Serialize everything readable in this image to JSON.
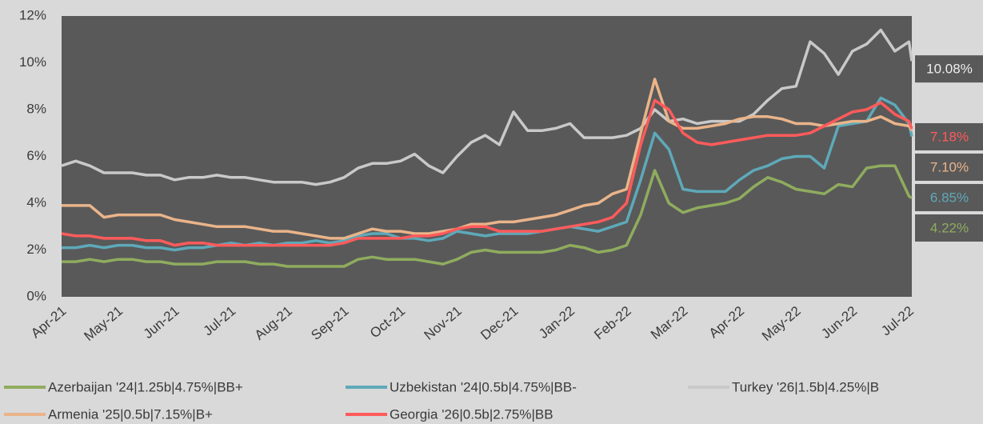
{
  "chart_data": {
    "type": "line",
    "x": [
      0,
      0.25,
      0.5,
      0.75,
      1,
      1.25,
      1.5,
      1.75,
      2,
      2.25,
      2.5,
      2.75,
      3,
      3.25,
      3.5,
      3.75,
      4,
      4.25,
      4.5,
      4.75,
      5,
      5.25,
      5.5,
      5.75,
      6,
      6.25,
      6.5,
      6.75,
      7,
      7.25,
      7.5,
      7.75,
      8,
      8.25,
      8.5,
      8.75,
      9,
      9.25,
      9.5,
      9.75,
      10,
      10.25,
      10.5,
      10.75,
      11,
      11.25,
      11.5,
      11.75,
      12,
      12.25,
      12.5,
      12.75,
      13,
      13.25,
      13.5,
      13.75,
      14,
      14.25,
      14.5,
      14.75,
      15,
      15.05
    ],
    "xlim": [
      0,
      15.05
    ],
    "xticks": [
      {
        "value": 0,
        "label": "Apr-21"
      },
      {
        "value": 1,
        "label": "May-21"
      },
      {
        "value": 2,
        "label": "Jun-21"
      },
      {
        "value": 3,
        "label": "Jul-21"
      },
      {
        "value": 4,
        "label": "Aug-21"
      },
      {
        "value": 5,
        "label": "Sep-21"
      },
      {
        "value": 6,
        "label": "Oct-21"
      },
      {
        "value": 7,
        "label": "Nov-21"
      },
      {
        "value": 8,
        "label": "Dec-21"
      },
      {
        "value": 9,
        "label": "Jan-22"
      },
      {
        "value": 10,
        "label": "Feb-22"
      },
      {
        "value": 11,
        "label": "Mar-22"
      },
      {
        "value": 12,
        "label": "Apr-22"
      },
      {
        "value": 13,
        "label": "May-22"
      },
      {
        "value": 14,
        "label": "Jun-22"
      },
      {
        "value": 15,
        "label": "Jul-22"
      }
    ],
    "ylim": [
      0,
      12
    ],
    "yticks": [
      {
        "value": 0,
        "label": "0%"
      },
      {
        "value": 2,
        "label": "2%"
      },
      {
        "value": 4,
        "label": "4%"
      },
      {
        "value": 6,
        "label": "6%"
      },
      {
        "value": 8,
        "label": "8%"
      },
      {
        "value": 10,
        "label": "10%"
      },
      {
        "value": 12,
        "label": "12%"
      }
    ],
    "grid": false,
    "legend": "bottom",
    "series": [
      {
        "name": "Azerbaijan '24|1.25b|4.75%|BB+",
        "color": "#8fac5e",
        "end_label": "4.22%",
        "values": [
          1.5,
          1.5,
          1.6,
          1.5,
          1.6,
          1.6,
          1.5,
          1.5,
          1.4,
          1.4,
          1.4,
          1.5,
          1.5,
          1.5,
          1.4,
          1.4,
          1.3,
          1.3,
          1.3,
          1.3,
          1.3,
          1.6,
          1.7,
          1.6,
          1.6,
          1.6,
          1.5,
          1.4,
          1.6,
          1.9,
          2.0,
          1.9,
          1.9,
          1.9,
          1.9,
          2.0,
          2.2,
          2.1,
          1.9,
          2.0,
          2.2,
          3.5,
          5.4,
          4.0,
          3.6,
          3.8,
          3.9,
          4.0,
          4.2,
          4.7,
          5.1,
          4.9,
          4.6,
          4.5,
          4.4,
          4.8,
          4.7,
          5.5,
          5.6,
          5.6,
          4.3,
          4.22
        ]
      },
      {
        "name": "Uzbekistan '24|0.5b|4.75%|BB-",
        "color": "#5ea9b9",
        "end_label": "6.85%",
        "values": [
          2.1,
          2.1,
          2.2,
          2.1,
          2.2,
          2.2,
          2.1,
          2.1,
          2.0,
          2.1,
          2.1,
          2.2,
          2.3,
          2.2,
          2.3,
          2.2,
          2.3,
          2.3,
          2.4,
          2.3,
          2.4,
          2.6,
          2.7,
          2.7,
          2.5,
          2.5,
          2.4,
          2.5,
          2.8,
          2.7,
          2.6,
          2.7,
          2.7,
          2.7,
          2.8,
          2.9,
          3.0,
          2.9,
          2.8,
          3.0,
          3.2,
          5.0,
          7.0,
          6.3,
          4.6,
          4.5,
          4.5,
          4.5,
          5.0,
          5.4,
          5.6,
          5.9,
          6.0,
          6.0,
          5.5,
          7.3,
          7.4,
          7.5,
          8.5,
          8.2,
          7.4,
          6.85
        ]
      },
      {
        "name": "Turkey '26|1.5b|4.25%|B",
        "color": "#c9c9c9",
        "end_label": "10.08%",
        "values": [
          5.6,
          5.8,
          5.6,
          5.3,
          5.3,
          5.3,
          5.2,
          5.2,
          5.0,
          5.1,
          5.1,
          5.2,
          5.1,
          5.1,
          5.0,
          4.9,
          4.9,
          4.9,
          4.8,
          4.9,
          5.1,
          5.5,
          5.7,
          5.7,
          5.8,
          6.1,
          5.6,
          5.3,
          6.0,
          6.6,
          6.9,
          6.5,
          7.9,
          7.1,
          7.1,
          7.2,
          7.4,
          6.8,
          6.8,
          6.8,
          6.9,
          7.2,
          8.0,
          7.5,
          7.6,
          7.4,
          7.5,
          7.5,
          7.5,
          7.8,
          8.4,
          8.9,
          9.0,
          10.9,
          10.4,
          9.5,
          10.5,
          10.8,
          11.4,
          10.5,
          10.9,
          10.08
        ]
      },
      {
        "name": "Armenia '25|0.5b|7.15%|B+",
        "color": "#eab48a",
        "end_label": "7.10%",
        "values": [
          3.9,
          3.9,
          3.9,
          3.4,
          3.5,
          3.5,
          3.5,
          3.5,
          3.3,
          3.2,
          3.1,
          3.0,
          3.0,
          3.0,
          2.9,
          2.8,
          2.8,
          2.7,
          2.6,
          2.5,
          2.5,
          2.7,
          2.9,
          2.8,
          2.8,
          2.7,
          2.7,
          2.8,
          2.9,
          3.1,
          3.1,
          3.2,
          3.2,
          3.3,
          3.4,
          3.5,
          3.7,
          3.9,
          4.0,
          4.4,
          4.6,
          7.0,
          9.3,
          7.5,
          7.2,
          7.2,
          7.3,
          7.4,
          7.6,
          7.7,
          7.7,
          7.6,
          7.4,
          7.4,
          7.3,
          7.4,
          7.5,
          7.5,
          7.7,
          7.4,
          7.3,
          7.1
        ]
      },
      {
        "name": "Georgia '26|0.5b|2.75%|BB",
        "color": "#ff5b5b",
        "end_label": "7.18%",
        "values": [
          2.7,
          2.6,
          2.6,
          2.5,
          2.5,
          2.5,
          2.4,
          2.4,
          2.2,
          2.3,
          2.3,
          2.2,
          2.2,
          2.2,
          2.2,
          2.2,
          2.2,
          2.2,
          2.2,
          2.2,
          2.3,
          2.5,
          2.5,
          2.5,
          2.5,
          2.6,
          2.6,
          2.7,
          2.9,
          3.0,
          3.0,
          2.8,
          2.8,
          2.8,
          2.8,
          2.9,
          3.0,
          3.1,
          3.2,
          3.4,
          4.0,
          6.5,
          8.4,
          8.0,
          7.0,
          6.6,
          6.5,
          6.6,
          6.7,
          6.8,
          6.9,
          6.9,
          6.9,
          7.0,
          7.3,
          7.6,
          7.9,
          8.0,
          8.3,
          7.8,
          7.5,
          7.18
        ]
      }
    ]
  }
}
